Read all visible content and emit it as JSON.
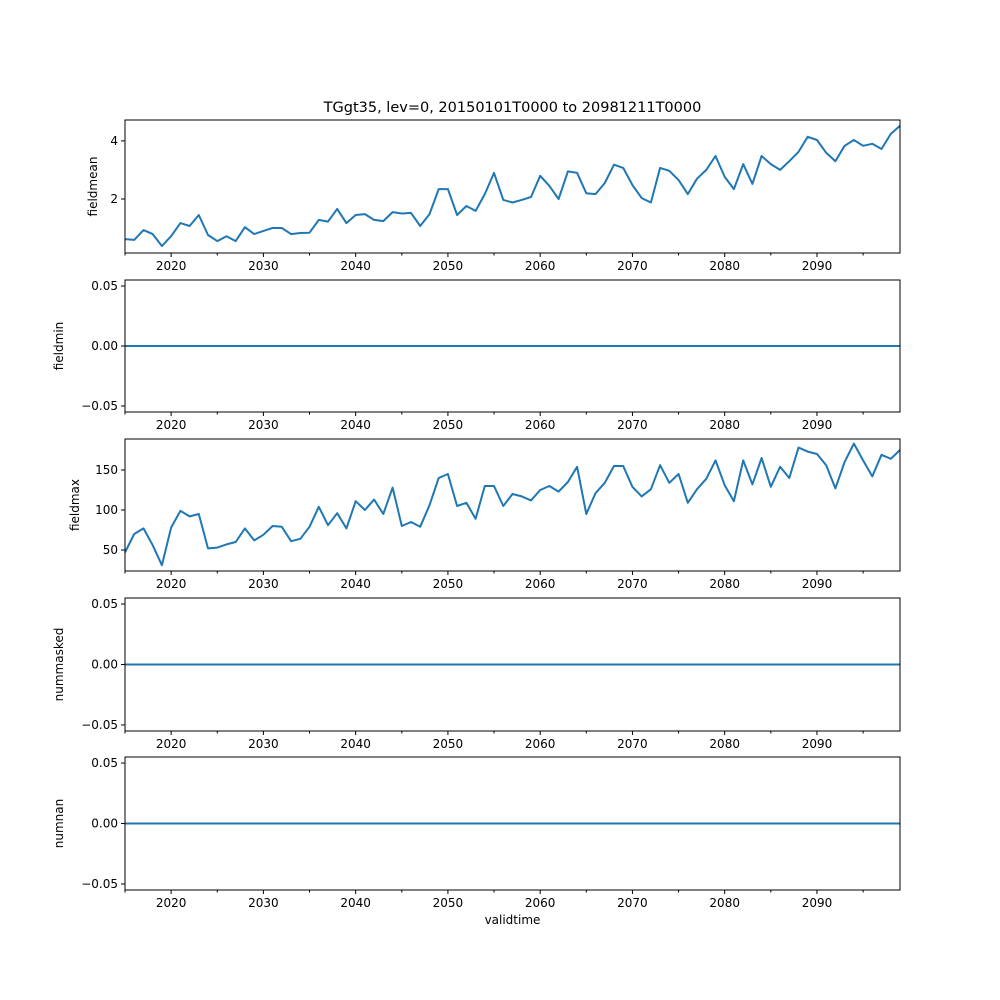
{
  "chart_data": [
    {
      "type": "line",
      "title": "TGgt35, lev=0, 20150101T0000 to 20981211T0000",
      "ylabel": "fieldmean",
      "xlabel": "",
      "xlim": [
        2015,
        2099
      ],
      "ylim": [
        0.14,
        4.72
      ],
      "xticks": [
        2020,
        2030,
        2040,
        2050,
        2060,
        2070,
        2080,
        2090
      ],
      "xtick_labels": [
        "2020",
        "2030",
        "2040",
        "2050",
        "2060",
        "2070",
        "2080",
        "2090"
      ],
      "yticks": [
        2,
        4
      ],
      "ytick_labels": [
        "2",
        "4"
      ],
      "color": "#1f77b4",
      "y": [
        0.62,
        0.59,
        0.93,
        0.79,
        0.38,
        0.72,
        1.17,
        1.07,
        1.45,
        0.76,
        0.55,
        0.72,
        0.55,
        1.03,
        0.79,
        0.9,
        1.0,
        1.0,
        0.79,
        0.83,
        0.84,
        1.28,
        1.22,
        1.66,
        1.17,
        1.45,
        1.48,
        1.28,
        1.24,
        1.55,
        1.5,
        1.52,
        1.07,
        1.48,
        2.34,
        2.34,
        1.45,
        1.76,
        1.59,
        2.17,
        2.9,
        1.97,
        1.88,
        1.97,
        2.07,
        2.8,
        2.45,
        2.0,
        2.95,
        2.9,
        2.2,
        2.17,
        2.55,
        3.18,
        3.07,
        2.48,
        2.03,
        1.88,
        3.07,
        2.97,
        2.65,
        2.17,
        2.7,
        3.0,
        3.48,
        2.76,
        2.34,
        3.2,
        2.52,
        3.48,
        3.2,
        3.0,
        3.3,
        3.62,
        4.14,
        4.03,
        3.59,
        3.3,
        3.83,
        4.03,
        3.83,
        3.9,
        3.72,
        4.24,
        4.52
      ]
    },
    {
      "type": "line",
      "title": "",
      "ylabel": "fieldmin",
      "xlabel": "",
      "xlim": [
        2015,
        2099
      ],
      "ylim": [
        -0.055,
        0.055
      ],
      "xticks": [
        2020,
        2030,
        2040,
        2050,
        2060,
        2070,
        2080,
        2090
      ],
      "xtick_labels": [
        "2020",
        "2030",
        "2040",
        "2050",
        "2060",
        "2070",
        "2080",
        "2090"
      ],
      "yticks": [
        -0.05,
        0.0,
        0.05
      ],
      "ytick_labels": [
        "−0.05",
        "0.00",
        "0.05"
      ],
      "color": "#1f77b4",
      "constant": 0
    },
    {
      "type": "line",
      "title": "",
      "ylabel": "fieldmax",
      "xlabel": "",
      "xlim": [
        2015,
        2099
      ],
      "ylim": [
        23.75,
        188.75
      ],
      "xticks": [
        2020,
        2030,
        2040,
        2050,
        2060,
        2070,
        2080,
        2090
      ],
      "xtick_labels": [
        "2020",
        "2030",
        "2040",
        "2050",
        "2060",
        "2070",
        "2080",
        "2090"
      ],
      "yticks": [
        50,
        100,
        150
      ],
      "ytick_labels": [
        "50",
        "100",
        "150"
      ],
      "color": "#1f77b4",
      "y": [
        47,
        70,
        77,
        56,
        31,
        78,
        99,
        92,
        95,
        52,
        53,
        57,
        60,
        77,
        62,
        69,
        80,
        79,
        61,
        64,
        79,
        104,
        81,
        96,
        77,
        111,
        100,
        113,
        95,
        128,
        80,
        85,
        79,
        106,
        140,
        145,
        105,
        109,
        89,
        130,
        130,
        105,
        120,
        117,
        112,
        125,
        130,
        123,
        135,
        154,
        95,
        121,
        134,
        155,
        155,
        129,
        117,
        126,
        156,
        134,
        145,
        109,
        126,
        139,
        162,
        131,
        111,
        162,
        132,
        165,
        129,
        154,
        140,
        178,
        173,
        170,
        156,
        127,
        160,
        183,
        162,
        142,
        169,
        164,
        175
      ]
    },
    {
      "type": "line",
      "title": "",
      "ylabel": "nummasked",
      "xlabel": "",
      "xlim": [
        2015,
        2099
      ],
      "ylim": [
        -0.055,
        0.055
      ],
      "xticks": [
        2020,
        2030,
        2040,
        2050,
        2060,
        2070,
        2080,
        2090
      ],
      "xtick_labels": [
        "2020",
        "2030",
        "2040",
        "2050",
        "2060",
        "2070",
        "2080",
        "2090"
      ],
      "yticks": [
        -0.05,
        0.0,
        0.05
      ],
      "ytick_labels": [
        "−0.05",
        "0.00",
        "0.05"
      ],
      "color": "#1f77b4",
      "constant": 0
    },
    {
      "type": "line",
      "title": "",
      "ylabel": "numnan",
      "xlabel": "validtime",
      "xlim": [
        2015,
        2099
      ],
      "ylim": [
        -0.055,
        0.055
      ],
      "xticks": [
        2020,
        2030,
        2040,
        2050,
        2060,
        2070,
        2080,
        2090
      ],
      "xtick_labels": [
        "2020",
        "2030",
        "2040",
        "2050",
        "2060",
        "2070",
        "2080",
        "2090"
      ],
      "yticks": [
        -0.05,
        0.0,
        0.05
      ],
      "ytick_labels": [
        "−0.05",
        "0.00",
        "0.05"
      ],
      "color": "#1f77b4",
      "constant": 0
    }
  ]
}
